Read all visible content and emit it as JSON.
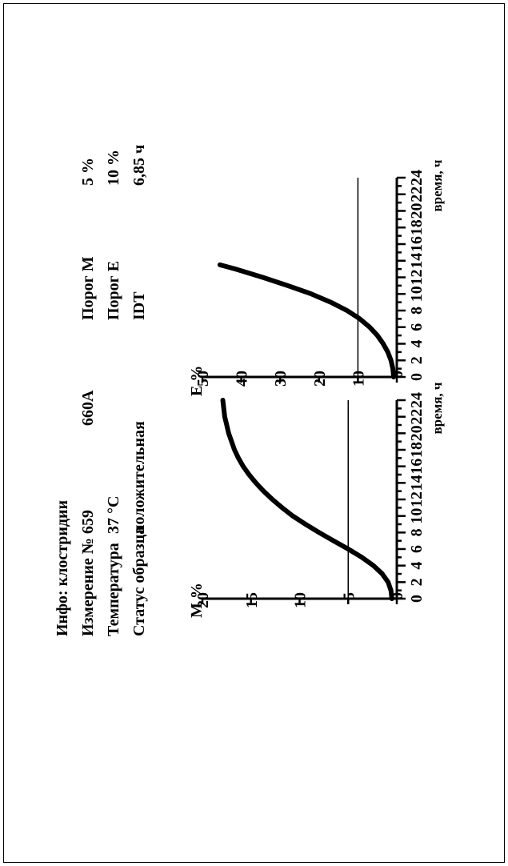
{
  "info": {
    "title": "Инфо: клостридии",
    "rows": [
      {
        "label": "Измерение №",
        "value": "659"
      },
      {
        "label": "Температура",
        "value": "37 °C"
      },
      {
        "label": "Статус образца",
        "value": "положительная"
      }
    ],
    "id2": "660A"
  },
  "thresholds": [
    {
      "label": "Порог М",
      "value": "5 %"
    },
    {
      "label": "Порог Е",
      "value": "10 %"
    },
    {
      "label": "IDT",
      "value": "6,85 ч"
    }
  ],
  "chart_data": [
    {
      "type": "line",
      "ylabel": "M %",
      "xlabel": "время, ч",
      "xlim": [
        0,
        24
      ],
      "ylim": [
        0,
        20
      ],
      "xticks": [
        0,
        2,
        4,
        6,
        8,
        10,
        12,
        14,
        16,
        18,
        20,
        22,
        24
      ],
      "yticks": [
        0,
        5,
        10,
        15,
        20
      ],
      "threshold": 5,
      "x": [
        0,
        1,
        2,
        3,
        4,
        5,
        6,
        7,
        8,
        9,
        10,
        11,
        12,
        13,
        14,
        15,
        16,
        17,
        18,
        19,
        20,
        21,
        22,
        23,
        24
      ],
      "y": [
        0.5,
        0.6,
        0.9,
        1.5,
        2.4,
        3.6,
        5.0,
        6.5,
        8.0,
        9.4,
        10.7,
        11.8,
        12.8,
        13.7,
        14.5,
        15.2,
        15.8,
        16.3,
        16.7,
        17.0,
        17.3,
        17.5,
        17.7,
        17.8,
        17.9
      ],
      "color": "#000000"
    },
    {
      "type": "line",
      "ylabel": "E %",
      "xlabel": "время, ч",
      "xlim": [
        0,
        24
      ],
      "ylim": [
        0,
        50
      ],
      "xticks": [
        0,
        2,
        4,
        6,
        8,
        10,
        12,
        14,
        16,
        18,
        20,
        22,
        24
      ],
      "yticks": [
        0,
        10,
        20,
        30,
        40,
        50
      ],
      "threshold": 10,
      "x": [
        0,
        1,
        2,
        3,
        4,
        5,
        6,
        7,
        8,
        9,
        10,
        11,
        12,
        13,
        13.5
      ],
      "y": [
        0.8,
        1.0,
        1.5,
        2.3,
        3.5,
        5.0,
        7.0,
        9.5,
        12.8,
        17.0,
        22.0,
        28.0,
        34.5,
        41.5,
        45.5
      ],
      "color": "#000000"
    }
  ]
}
